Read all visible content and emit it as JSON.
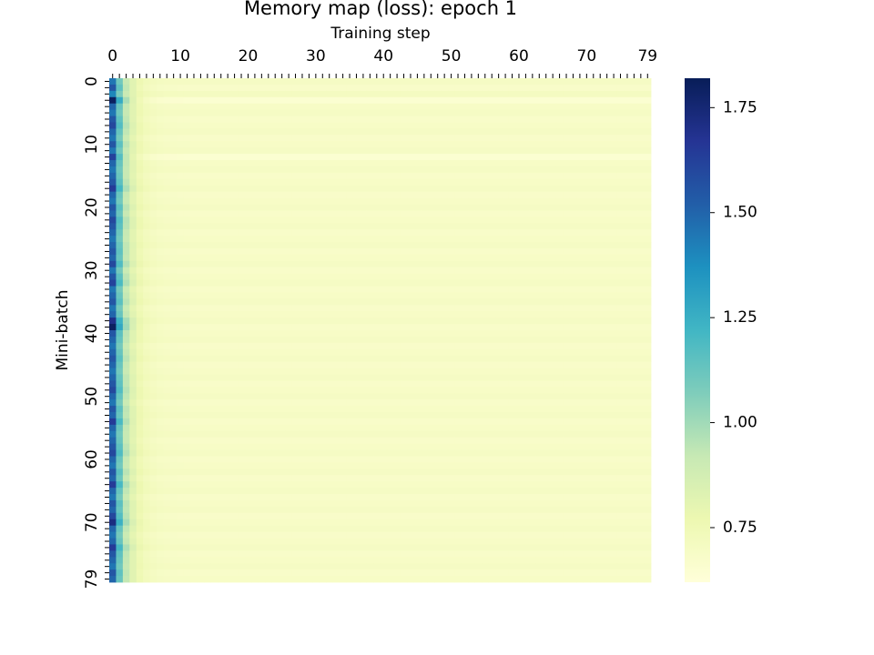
{
  "chart_data": {
    "type": "heatmap",
    "title": "Memory map (loss): epoch 1",
    "xlabel": "Training step",
    "ylabel": "Mini-batch",
    "x_tick_labels": [
      "0",
      "10",
      "20",
      "30",
      "40",
      "50",
      "60",
      "70",
      "79"
    ],
    "y_tick_labels": [
      "0",
      "10",
      "20",
      "30",
      "40",
      "50",
      "60",
      "70",
      "79"
    ],
    "x_range": [
      0,
      79
    ],
    "y_range": [
      0,
      79
    ],
    "n_steps": 80,
    "n_batches": 80,
    "x_axis_position": "top",
    "colormap": "YlGnBu",
    "colormap_stops": [
      "#ffffd9",
      "#edf8b1",
      "#c7e9b4",
      "#7fcdbb",
      "#41b6c4",
      "#1d91c0",
      "#225ea8",
      "#253494",
      "#081d58"
    ],
    "value_range": [
      0.62,
      1.82
    ],
    "colorbar": {
      "tick_values": [
        0.75,
        1.0,
        1.25,
        1.5,
        1.75
      ],
      "tick_labels": [
        "0.75",
        "1.00",
        "1.25",
        "1.50",
        "1.75"
      ]
    },
    "initial_loss_by_batch": [
      1.45,
      1.55,
      1.4,
      1.8,
      1.5,
      1.45,
      1.55,
      1.6,
      1.5,
      1.45,
      1.55,
      1.45,
      1.62,
      1.5,
      1.45,
      1.5,
      1.55,
      1.65,
      1.5,
      1.45,
      1.55,
      1.5,
      1.6,
      1.55,
      1.5,
      1.45,
      1.5,
      1.55,
      1.5,
      1.6,
      1.45,
      1.55,
      1.62,
      1.45,
      1.5,
      1.55,
      1.45,
      1.5,
      1.7,
      1.8,
      1.55,
      1.5,
      1.45,
      1.5,
      1.55,
      1.5,
      1.45,
      1.5,
      1.55,
      1.6,
      1.5,
      1.45,
      1.55,
      1.5,
      1.65,
      1.5,
      1.45,
      1.5,
      1.55,
      1.6,
      1.5,
      1.45,
      1.55,
      1.5,
      1.65,
      1.5,
      1.45,
      1.55,
      1.5,
      1.6,
      1.72,
      1.5,
      1.45,
      1.5,
      1.65,
      1.55,
      1.5,
      1.45,
      1.55,
      1.5
    ],
    "decay_per_step": 0.62,
    "converged_loss": 0.68,
    "converged_loss_variation_by_batch": [
      0.02,
      0.0,
      0.03,
      -0.03,
      0.01,
      0.02,
      0.0,
      0.01,
      0.02,
      0.0,
      0.01,
      0.02,
      -0.03,
      0.01,
      0.02,
      0.0,
      0.01,
      0.02,
      0.0,
      0.01,
      0.02,
      0.0,
      0.01,
      0.02,
      0.0,
      0.01,
      0.02,
      0.0,
      0.01,
      0.02,
      0.0,
      0.01,
      0.02,
      0.0,
      0.01,
      0.02,
      0.0,
      0.01,
      0.02,
      0.0,
      0.01,
      0.02,
      0.0,
      0.01,
      0.02,
      0.0,
      0.01,
      0.02,
      0.0,
      0.01,
      0.02,
      0.0,
      0.01,
      0.02,
      0.0,
      0.01,
      0.02,
      0.0,
      0.01,
      0.02,
      0.0,
      0.01,
      0.02,
      0.0,
      0.01,
      0.02,
      0.0,
      0.01,
      0.02,
      0.0,
      0.01,
      0.02,
      0.0,
      0.01,
      0.02,
      0.0,
      0.01,
      0.02,
      0.0,
      0.01
    ]
  }
}
